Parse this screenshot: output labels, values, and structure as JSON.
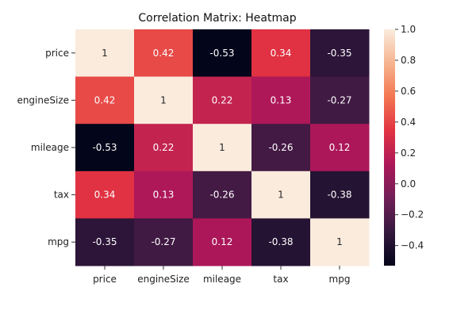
{
  "chart_data": {
    "type": "heatmap",
    "title": "Correlation Matrix: Heatmap",
    "xlabel": "",
    "ylabel": "",
    "rows": [
      "price",
      "engineSize",
      "mileage",
      "tax",
      "mpg"
    ],
    "columns": [
      "price",
      "engineSize",
      "mileage",
      "tax",
      "mpg"
    ],
    "values": [
      [
        1,
        0.42,
        -0.53,
        0.34,
        -0.35
      ],
      [
        0.42,
        1,
        0.22,
        0.13,
        -0.27
      ],
      [
        -0.53,
        0.22,
        1,
        -0.26,
        0.12
      ],
      [
        0.34,
        0.13,
        -0.26,
        1,
        -0.38
      ],
      [
        -0.35,
        -0.27,
        0.12,
        -0.38,
        1
      ]
    ],
    "cell_labels": [
      [
        "1",
        "0.42",
        "-0.53",
        "0.34",
        "-0.35"
      ],
      [
        "0.42",
        "1",
        "0.22",
        "0.13",
        "-0.27"
      ],
      [
        "-0.53",
        "0.22",
        "1",
        "-0.26",
        "0.12"
      ],
      [
        "0.34",
        "0.13",
        "-0.26",
        "1",
        "-0.38"
      ],
      [
        "-0.35",
        "-0.27",
        "0.12",
        "-0.38",
        "1"
      ]
    ],
    "colorbar": {
      "vmin": -0.53,
      "vmax": 1.0,
      "ticks": [
        1.0,
        0.8,
        0.6,
        0.4,
        0.2,
        0.0,
        -0.2,
        -0.4
      ],
      "tick_labels": [
        "1.0",
        "0.8",
        "0.6",
        "0.4",
        "0.2",
        "0.0",
        "−0.2",
        "−0.4"
      ],
      "colormap": "rocket",
      "stops": [
        "#03051a",
        "#35193e",
        "#701f57",
        "#ad1759",
        "#e13342",
        "#f37651",
        "#f6b48f",
        "#faebdd"
      ]
    },
    "grid": false,
    "legend": "right"
  }
}
